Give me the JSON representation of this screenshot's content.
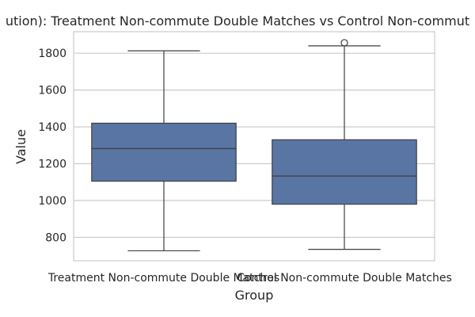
{
  "chart_data": {
    "type": "box",
    "title": "ution): Treatment Non-commute Double Matches vs Control Non-commut",
    "xlabel": "Group",
    "ylabel": "Value",
    "categories": [
      "Treatment Non-commute Double Matches",
      "Control Non-commute Double Matches"
    ],
    "boxes": [
      {
        "whisker_low": 727,
        "q1": 1105,
        "median": 1282,
        "q3": 1420,
        "whisker_high": 1813,
        "outliers": []
      },
      {
        "whisker_low": 735,
        "q1": 980,
        "median": 1133,
        "q3": 1330,
        "whisker_high": 1840,
        "outliers": [
          1857
        ]
      }
    ],
    "yticks": [
      800,
      1000,
      1200,
      1400,
      1600,
      1800
    ],
    "ylim": [
      673,
      1917
    ],
    "grid": true,
    "colors": {
      "box_fill": "#5875a4",
      "line": "#3f3f3f",
      "grid": "#cccccc",
      "spine": "#cccccc"
    }
  }
}
